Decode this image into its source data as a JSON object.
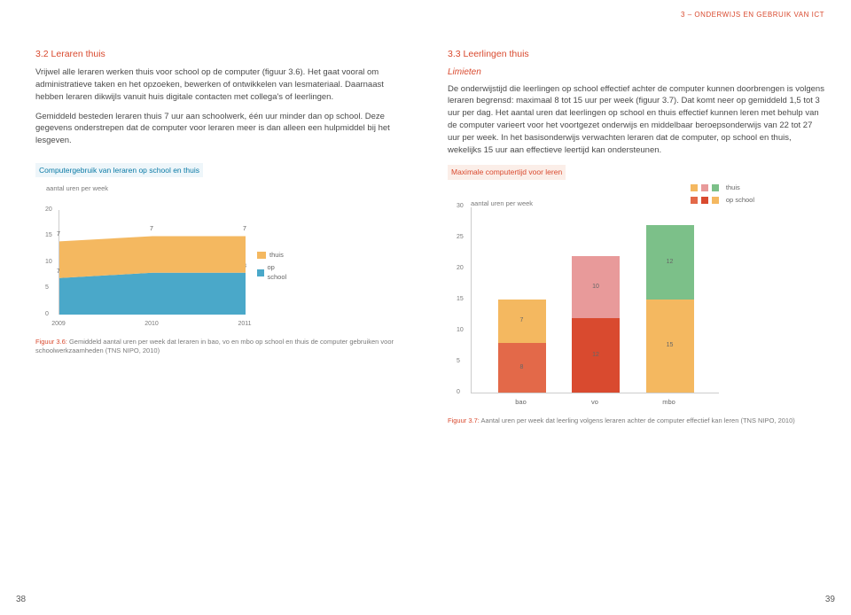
{
  "header": "3 – ONDERWIJS EN GEBRUIK VAN ICT",
  "left": {
    "title": "3.2 Leraren thuis",
    "p1": "Vrijwel alle leraren werken thuis voor school op de computer (figuur 3.6). Het gaat vooral om administratieve taken en het opzoeken, bewerken of ontwikkelen van lesmateriaal. Daarnaast hebben leraren dikwijls vanuit huis digitale contacten met collega's of leerlingen.",
    "p2": "Gemiddeld besteden leraren thuis 7 uur aan schoolwerk, één uur minder dan op school. Deze gegevens onderstrepen dat de computer voor leraren meer is dan alleen een hulpmiddel bij het lesgeven.",
    "chart_title": "Computergebruik van leraren op school en thuis",
    "axis_label": "aantal uren per week",
    "caption_bold": "Figuur 3.6:",
    "caption": " Gemiddeld aantal uren per week dat leraren in bao, vo en mbo op school en thuis de computer gebruiken voor schoolwerkzaamheden (TNS NIPO, 2010)",
    "area_chart": {
      "type": "stacked-area",
      "x_labels": [
        "2009",
        "2010",
        "2011"
      ],
      "y_max": 20,
      "y_tick_step": 5,
      "series": [
        {
          "name": "op school",
          "color": "#4aa8c9",
          "values": [
            7,
            8,
            8
          ]
        },
        {
          "name": "thuis",
          "color": "#f4b860",
          "values": [
            7,
            7,
            7
          ]
        }
      ],
      "legend": [
        {
          "label": "thuis",
          "color": "#f4b860"
        },
        {
          "label": "op school",
          "color": "#4aa8c9"
        }
      ],
      "background_color": "#ffffff",
      "grid_color": "#e6e6e6",
      "label_fontsize": 7
    }
  },
  "right": {
    "title": "3.3 Leerlingen thuis",
    "subtitle": "Limieten",
    "p1": "De onderwijstijd die leerlingen op school effectief achter de computer kunnen doorbrengen is volgens leraren begrensd: maximaal 8 tot 15 uur per week (figuur 3.7). Dat komt neer op gemiddeld 1,5 tot 3 uur per dag. Het aantal uren dat leerlingen op school en thuis effectief kunnen leren met behulp van de computer varieert voor het voortgezet onderwijs en middelbaar beroepsonderwijs van 22 tot 27 uur per week. In het basisonderwijs verwachten leraren dat de computer, op school en thuis, wekelijks 15 uur aan effectieve leertijd kan ondersteunen.",
    "chart_title": "Maximale computertijd voor leren",
    "axis_label": "aantal uren per week",
    "caption_bold": "Figuur 3.7:",
    "caption": " Aantal uren per week dat leerling volgens leraren achter de computer effectief kan leren (TNS NIPO, 2010)",
    "bar_chart": {
      "type": "stacked-bar",
      "categories": [
        "bao",
        "vo",
        "mbo"
      ],
      "y_max": 30,
      "y_tick_step": 5,
      "series": [
        {
          "name": "op school",
          "segments": [
            {
              "value": 8,
              "color": "#e36949"
            },
            {
              "value": 12,
              "color": "#d94a2f"
            },
            {
              "value": 15,
              "color": "#f4b860"
            }
          ]
        },
        {
          "name": "thuis",
          "segments": [
            {
              "value": 7,
              "color": "#f4b860"
            },
            {
              "value": 10,
              "color": "#e89a9a"
            },
            {
              "value": 12,
              "color": "#7cc089"
            }
          ]
        }
      ],
      "legend": [
        {
          "label": "thuis",
          "colors": [
            "#f4b860",
            "#e89a9a",
            "#7cc089"
          ]
        },
        {
          "label": "op school",
          "colors": [
            "#e36949",
            "#d94a2f",
            "#f4b860"
          ]
        }
      ],
      "background_color": "#ffffff",
      "label_fontsize": 7
    }
  },
  "page_left": "38",
  "page_right": "39"
}
